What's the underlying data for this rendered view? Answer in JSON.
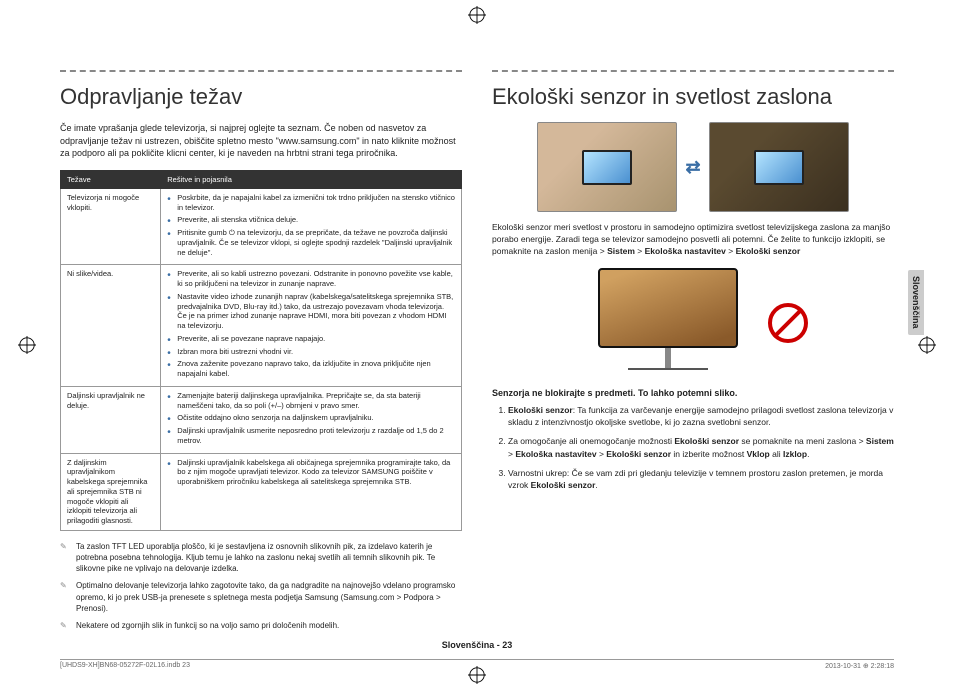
{
  "left": {
    "heading": "Odpravljanje težav",
    "intro": "Če imate vprašanja glede televizorja, si najprej oglejte ta seznam. Če noben od nasvetov za odpravljanje težav ni ustrezen, obiščite spletno mesto \"www.samsung.com\" in nato kliknite možnost za podporo ali pa pokličite klicni center, ki je naveden na hrbtni strani tega priročnika.",
    "th1": "Težave",
    "th2": "Rešitve in pojasnila",
    "rows": [
      {
        "issue": "Televizorja ni mogoče vklopiti.",
        "items": [
          "Poskrbite, da je napajalni kabel za izmenični tok trdno priključen na stensko vtičnico in televizor.",
          "Preverite, ali stenska vtičnica deluje.",
          "Pritisnite gumb ⏻ na televizorju, da se prepričate, da težave ne povzroča daljinski upravljalnik. Če se televizor vklopi, si oglejte spodnji razdelek \"Daljinski upravljalnik ne deluje\"."
        ]
      },
      {
        "issue": "Ni slike/videa.",
        "items": [
          "Preverite, ali so kabli ustrezno povezani. Odstranite in ponovno povežite vse kable, ki so priključeni na televizor in zunanje naprave.",
          "Nastavite video izhode zunanjih naprav (kabelskega/satelitskega sprejemnika STB, predvajalnika DVD, Blu-ray itd.) tako, da ustrezajo povezavam vhoda televizorja. Če je na primer izhod zunanje naprave HDMI, mora biti povezan z vhodom HDMI na televizorju.",
          "Preverite, ali se povezane naprave napajajo.",
          "Izbran mora biti ustrezni vhodni vir.",
          "Znova zaženite povezano napravo tako, da izključite in znova priključite njen napajalni kabel."
        ]
      },
      {
        "issue": "Daljinski upravljalnik ne deluje.",
        "items": [
          "Zamenjajte bateriji daljinskega upravljalnika. Prepričajte se, da sta bateriji nameščeni tako, da so poli (+/–) obrnjeni v pravo smer.",
          "Očistite oddajno okno senzorja na daljinskem upravljalniku.",
          "Daljinski upravljalnik usmerite neposredno proti televizorju z razdalje od 1,5 do 2 metrov."
        ]
      },
      {
        "issue": "Z daljinskim upravljalnikom kabelskega sprejemnika ali sprejemnika STB ni mogoče vklopiti ali izklopiti televizorja ali prilagoditi glasnosti.",
        "items": [
          "Daljinski upravljalnik kabelskega ali običajnega sprejemnika programirajte tako, da bo z njim mogoče upravljati televizor. Kodo za televizor SAMSUNG poiščite v uporabniškem priročniku kabelskega ali satelitskega sprejemnika STB."
        ]
      }
    ],
    "notes": [
      "Ta zaslon TFT LED uporablja ploščo, ki je sestavljena iz osnovnih slikovnih pik, za izdelavo katerih je potrebna posebna tehnologija. Kljub temu je lahko na zaslonu nekaj svetlih ali temnih slikovnih pik. Te slikovne pike ne vplivajo na delovanje izdelka.",
      "Optimalno delovanje televizorja lahko zagotovite tako, da ga nadgradite na najnovejšo vdelano programsko opremo, ki jo prek USB-ja prenesete s spletnega mesta podjetja Samsung (Samsung.com > Podpora > Prenosi).",
      "Nekatere od zgornjih slik in funkcij so na voljo samo pri določenih modelih."
    ]
  },
  "right": {
    "heading": "Ekološki senzor in svetlost zaslona",
    "para1_a": "Ekološki senzor meri svetlost v prostoru in samodejno optimizira svetlost televizijskega zaslona za manjšo porabo energije. Zaradi tega se televizor samodejno posvetli ali potemni. Če želite to funkcijo izklopiti, se pomaknite na zaslon menija > ",
    "para1_b": "Sistem",
    "para1_c": " > ",
    "para1_d": "Ekološka nastavitev",
    "para1_e": " > ",
    "para1_f": "Ekološki senzor",
    "subhead": "Senzorja ne blokirajte s predmeti. To lahko potemni sliko.",
    "step1_a": "Ekološki senzor",
    "step1_b": ": Ta funkcija za varčevanje energije samodejno prilagodi svetlost zaslona televizorja v skladu z intenzivnostjo okoljske svetlobe, ki jo zazna svetlobni senzor.",
    "step2_a": "Za omogočanje ali onemogočanje možnosti ",
    "step2_b": "Ekološki senzor",
    "step2_c": " se pomaknite na meni zaslona > ",
    "step2_d": "Sistem",
    "step2_e": " > ",
    "step2_f": "Ekološka nastavitev",
    "step2_g": " > ",
    "step2_h": "Ekološki senzor",
    "step2_i": " in izberite možnost ",
    "step2_j": "Vklop",
    "step2_k": " ali ",
    "step2_l": "Izklop",
    "step2_m": ".",
    "step3_a": "Varnostni ukrep: Če se vam zdi pri gledanju televizije v temnem prostoru zaslon pretemen, je morda vzrok ",
    "step3_b": "Ekološki senzor",
    "step3_c": "."
  },
  "sidetab": "Slovenščina",
  "pagenum": "Slovenščina - 23",
  "footer_left": "[UHDS9-XH]BN68-05272F-02L16.indb   23",
  "footer_right": "2013-10-31   ⊕ 2:28:18",
  "colors": {
    "bullet": "#3a6ea5",
    "header_bg": "#333333",
    "border": "#999999",
    "prohibit": "#cc0000"
  }
}
